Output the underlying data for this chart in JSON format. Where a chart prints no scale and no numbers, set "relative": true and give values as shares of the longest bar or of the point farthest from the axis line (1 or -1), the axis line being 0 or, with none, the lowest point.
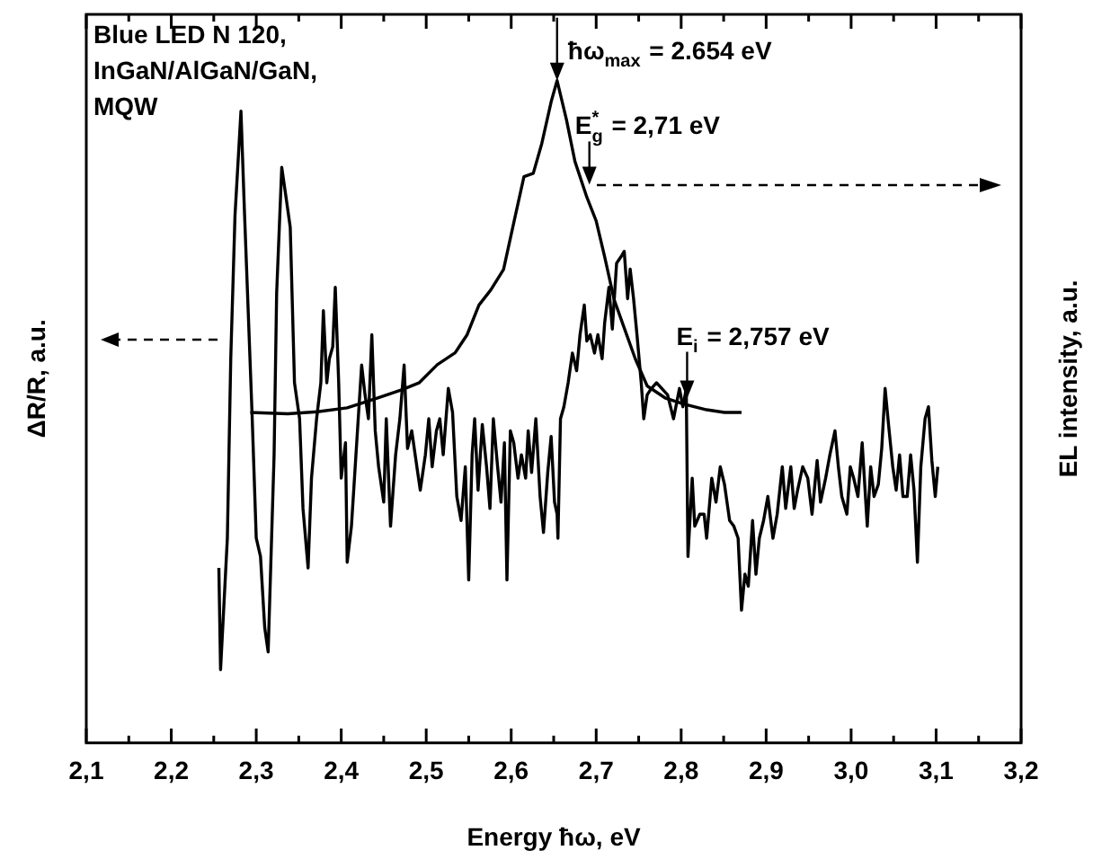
{
  "chart_data": {
    "type": "line",
    "relative": true,
    "xlabel": "Energy ħω, eV",
    "ylabel": "ΔR/R, a.u.",
    "y2label": "EL intensity, a.u.",
    "annotations": [
      "Blue LED N 120, InGaN/AlGaN/GaN, MQW",
      {
        "text": "ħω$_{max}$ = 2.654 eV",
        "x": 2.654,
        "y": 1.0
      },
      {
        "text": "E$^{*}$$_{g}$ = 2,71 eV",
        "x": 2.692,
        "y": 0.843
      },
      {
        "text": "E$_{i}$ = 2,757 eV",
        "x": 2.807,
        "y": 0.52
      }
    ],
    "xlim": [
      2.1,
      3.2
    ],
    "xticks": [
      {
        "value": 2.1,
        "label": "2,1"
      },
      {
        "value": 2.15,
        "label": null
      },
      {
        "value": 2.2,
        "label": "2,2"
      },
      {
        "value": 2.25,
        "label": null
      },
      {
        "value": 2.3,
        "label": "2,3"
      },
      {
        "value": 2.35,
        "label": null
      },
      {
        "value": 2.4,
        "label": "2,4"
      },
      {
        "value": 2.45,
        "label": null
      },
      {
        "value": 2.5,
        "label": "2,5"
      },
      {
        "value": 2.55,
        "label": null
      },
      {
        "value": 2.6,
        "label": "2,6"
      },
      {
        "value": 2.65,
        "label": null
      },
      {
        "value": 2.7,
        "label": "2,7"
      },
      {
        "value": 2.75,
        "label": null
      },
      {
        "value": 2.8,
        "label": "2,8"
      },
      {
        "value": 2.85,
        "label": null
      },
      {
        "value": 2.9,
        "label": "2,9"
      },
      {
        "value": 2.95,
        "label": null
      },
      {
        "value": 3.0,
        "label": "3,0"
      },
      {
        "value": 3.05,
        "label": null
      },
      {
        "value": 3.1,
        "label": "3,1"
      },
      {
        "value": 3.15,
        "label": null
      },
      {
        "value": 3.2,
        "label": "3,2"
      }
    ],
    "tick_labels": "x",
    "grid": false,
    "legend": false,
    "marker": "none",
    "series": [
      {
        "color": "#000000",
        "axis": "y",
        "x": [
          2.256,
          2.258,
          2.262,
          2.266,
          2.27,
          2.275,
          2.282,
          2.286,
          2.295,
          2.3,
          2.305,
          2.31,
          2.314,
          2.317,
          2.321,
          2.324,
          2.33,
          2.335,
          2.34,
          2.345,
          2.351,
          2.355,
          2.361,
          2.365,
          2.371,
          2.376,
          2.379,
          2.383,
          2.386,
          2.39,
          2.393,
          2.397,
          2.4,
          2.405,
          2.407,
          2.412,
          2.416,
          2.42,
          2.424,
          2.428,
          2.432,
          2.436,
          2.44,
          2.444,
          2.45,
          2.453,
          2.458,
          2.464,
          2.469,
          2.474,
          2.478,
          2.483,
          2.489,
          2.493,
          2.499,
          2.503,
          2.507,
          2.512,
          2.516,
          2.52,
          2.526,
          2.531,
          2.536,
          2.541,
          2.546,
          2.55,
          2.554,
          2.557,
          2.561,
          2.566,
          2.571,
          2.575,
          2.579,
          2.584,
          2.588,
          2.592,
          2.595,
          2.599,
          2.603,
          2.608,
          2.612,
          2.617,
          2.62,
          2.624,
          2.629,
          2.634,
          2.638,
          2.643,
          2.647,
          2.651,
          2.654,
          2.655,
          2.658,
          2.662,
          2.667,
          2.672,
          2.677,
          2.681,
          2.686,
          2.689,
          2.693,
          2.698,
          2.702,
          2.707,
          2.71,
          2.715,
          2.719,
          2.724,
          2.729,
          2.733,
          2.737,
          2.74,
          2.744,
          2.748,
          2.753,
          2.756,
          2.76,
          2.765,
          2.771,
          2.784,
          2.791,
          2.798,
          2.802,
          2.806,
          2.808,
          2.813,
          2.816,
          2.822,
          2.827,
          2.83,
          2.836,
          2.841,
          2.846,
          2.851,
          2.857,
          2.862,
          2.867,
          2.871,
          2.875,
          2.879,
          2.884,
          2.888,
          2.892,
          2.897,
          2.902,
          2.908,
          2.913,
          2.919,
          2.923,
          2.929,
          2.933,
          2.937,
          2.943,
          2.949,
          2.954,
          2.96,
          2.964,
          2.97,
          2.975,
          2.981,
          2.985,
          2.989,
          2.995,
          2.999,
          3.003,
          3.008,
          3.013,
          3.019,
          3.023,
          3.027,
          3.032,
          3.036,
          3.04,
          3.044,
          3.049,
          3.053,
          3.057,
          3.061,
          3.066,
          3.07,
          3.074,
          3.078,
          3.082,
          3.087,
          3.091,
          3.095,
          3.099,
          3.102
        ],
        "values": [
          0.277,
          0.116,
          0.22,
          0.324,
          0.608,
          0.835,
          1.0,
          0.845,
          0.523,
          0.324,
          0.295,
          0.182,
          0.144,
          0.277,
          0.456,
          0.712,
          0.911,
          0.864,
          0.816,
          0.57,
          0.513,
          0.371,
          0.277,
          0.419,
          0.513,
          0.57,
          0.684,
          0.57,
          0.608,
          0.627,
          0.721,
          0.57,
          0.419,
          0.475,
          0.286,
          0.343,
          0.428,
          0.513,
          0.598,
          0.551,
          0.513,
          0.646,
          0.494,
          0.437,
          0.381,
          0.513,
          0.343,
          0.456,
          0.513,
          0.598,
          0.466,
          0.494,
          0.437,
          0.4,
          0.456,
          0.513,
          0.437,
          0.494,
          0.513,
          0.456,
          0.561,
          0.523,
          0.39,
          0.352,
          0.437,
          0.258,
          0.456,
          0.513,
          0.4,
          0.504,
          0.437,
          0.371,
          0.513,
          0.437,
          0.381,
          0.475,
          0.258,
          0.494,
          0.475,
          0.419,
          0.456,
          0.419,
          0.494,
          0.428,
          0.513,
          0.39,
          0.333,
          0.428,
          0.485,
          0.381,
          0.362,
          0.324,
          0.513,
          0.532,
          0.57,
          0.617,
          0.589,
          0.646,
          0.693,
          0.636,
          0.646,
          0.617,
          0.646,
          0.608,
          0.665,
          0.721,
          0.655,
          0.759,
          0.769,
          0.778,
          0.703,
          0.75,
          0.703,
          0.646,
          0.57,
          0.513,
          0.551,
          0.561,
          0.57,
          0.551,
          0.513,
          0.561,
          0.532,
          0.561,
          0.295,
          0.419,
          0.343,
          0.362,
          0.362,
          0.324,
          0.419,
          0.381,
          0.437,
          0.409,
          0.352,
          0.343,
          0.324,
          0.21,
          0.267,
          0.248,
          0.352,
          0.267,
          0.324,
          0.352,
          0.39,
          0.324,
          0.362,
          0.437,
          0.371,
          0.437,
          0.371,
          0.4,
          0.437,
          0.419,
          0.362,
          0.447,
          0.381,
          0.419,
          0.456,
          0.494,
          0.437,
          0.39,
          0.362,
          0.437,
          0.419,
          0.39,
          0.475,
          0.343,
          0.437,
          0.39,
          0.409,
          0.466,
          0.561,
          0.504,
          0.437,
          0.4,
          0.456,
          0.39,
          0.39,
          0.456,
          0.4,
          0.286,
          0.437,
          0.513,
          0.532,
          0.447,
          0.39,
          0.437
        ]
      },
      {
        "color": "#000000",
        "axis": "y2",
        "x": [
          2.293,
          2.337,
          2.372,
          2.407,
          2.443,
          2.471,
          2.492,
          2.513,
          2.534,
          2.548,
          2.562,
          2.576,
          2.591,
          2.605,
          2.615,
          2.626,
          2.636,
          2.647,
          2.654,
          2.665,
          2.675,
          2.689,
          2.7,
          2.71,
          2.721,
          2.732,
          2.746,
          2.76,
          2.781,
          2.802,
          2.83,
          2.851,
          2.871
        ],
        "values": [
          0.499,
          0.497,
          0.5,
          0.506,
          0.521,
          0.533,
          0.544,
          0.571,
          0.589,
          0.616,
          0.661,
          0.684,
          0.715,
          0.797,
          0.855,
          0.86,
          0.905,
          0.968,
          1.0,
          0.941,
          0.878,
          0.824,
          0.788,
          0.734,
          0.67,
          0.63,
          0.58,
          0.539,
          0.521,
          0.512,
          0.503,
          0.499,
          0.499
        ]
      }
    ]
  }
}
